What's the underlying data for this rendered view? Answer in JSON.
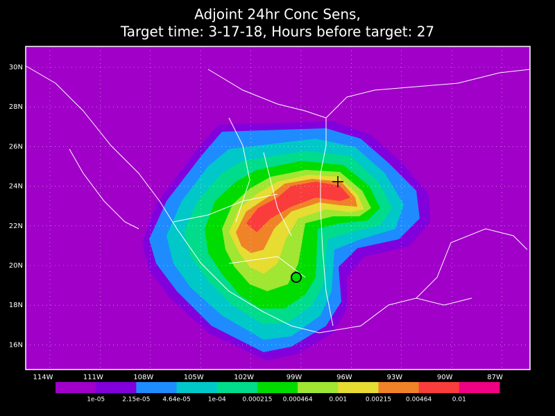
{
  "title": {
    "line1": "Adjoint 24hr Conc Sens,",
    "line2": "Target time: 3-17-18, Hours before target: 27"
  },
  "lon_labels": [
    "114W",
    "111W",
    "108W",
    "105W",
    "102W",
    "99W",
    "96W",
    "93W",
    "90W",
    "87W"
  ],
  "lat_labels": [
    "30N",
    "28N",
    "26N",
    "24N",
    "22N",
    "20N",
    "18N",
    "16N"
  ],
  "colorbar": {
    "colors": [
      "#a000c8",
      "#8200dc",
      "#1e8cff",
      "#00c8c8",
      "#00dc8c",
      "#00dc00",
      "#a0e632",
      "#e6dc32",
      "#f08228",
      "#fa3c3c",
      "#f00082"
    ],
    "labels": [
      "1e-05",
      "2.15e-05",
      "4.64e-05",
      "1e-04",
      "0.000215",
      "0.000464",
      "0.001",
      "0.00215",
      "0.00464",
      "0.01"
    ]
  }
}
